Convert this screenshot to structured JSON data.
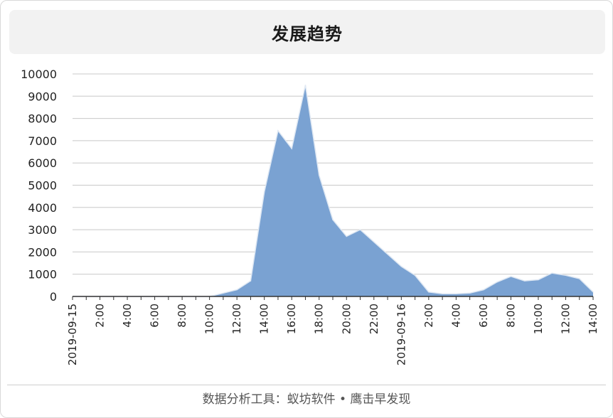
{
  "title": "发展趋势",
  "footer": "数据分析工具：蚁坊软件 • 鹰击早发现",
  "colors": {
    "area_fill": "#7aa2d2",
    "area_line": "#dfe8f3",
    "grid": "#c8c8c8",
    "axis": "#333333"
  },
  "chart_data": {
    "type": "area",
    "title": "",
    "xlabel": "",
    "ylabel": "",
    "ylim": [
      0,
      10000
    ],
    "yticks": [
      0,
      1000,
      2000,
      3000,
      4000,
      5000,
      6000,
      7000,
      8000,
      9000,
      10000
    ],
    "grid": true,
    "legend": "none",
    "xtick_labels": [
      "2019-09-15",
      "2:00",
      "4:00",
      "6:00",
      "8:00",
      "10:00",
      "12:00",
      "14:00",
      "16:00",
      "18:00",
      "20:00",
      "22:00",
      "2019-09-16",
      "2:00",
      "4:00",
      "6:00",
      "8:00",
      "10:00",
      "12:00",
      "14:00"
    ],
    "series": [
      {
        "x": [
          "2019-09-15 00:00",
          "2019-09-15 01:00",
          "2019-09-15 02:00",
          "2019-09-15 03:00",
          "2019-09-15 04:00",
          "2019-09-15 05:00",
          "2019-09-15 06:00",
          "2019-09-15 07:00",
          "2019-09-15 08:00",
          "2019-09-15 09:00",
          "2019-09-15 10:00",
          "2019-09-15 11:00",
          "2019-09-15 12:00",
          "2019-09-15 13:00",
          "2019-09-15 14:00",
          "2019-09-15 15:00",
          "2019-09-15 16:00",
          "2019-09-15 17:00",
          "2019-09-15 18:00",
          "2019-09-15 19:00",
          "2019-09-15 20:00",
          "2019-09-15 21:00",
          "2019-09-15 22:00",
          "2019-09-15 23:00",
          "2019-09-16 00:00",
          "2019-09-16 01:00",
          "2019-09-16 02:00",
          "2019-09-16 03:00",
          "2019-09-16 04:00",
          "2019-09-16 05:00",
          "2019-09-16 06:00",
          "2019-09-16 07:00",
          "2019-09-16 08:00",
          "2019-09-16 09:00",
          "2019-09-16 10:00",
          "2019-09-16 11:00",
          "2019-09-16 12:00",
          "2019-09-16 13:00",
          "2019-09-16 14:00"
        ],
        "values": [
          0,
          0,
          0,
          0,
          0,
          0,
          0,
          0,
          0,
          0,
          0,
          150,
          300,
          700,
          4700,
          7450,
          6650,
          9500,
          5450,
          3450,
          2700,
          3000,
          2450,
          1900,
          1350,
          950,
          200,
          120,
          120,
          150,
          300,
          650,
          900,
          700,
          750,
          1050,
          950,
          800,
          200
        ]
      }
    ]
  }
}
